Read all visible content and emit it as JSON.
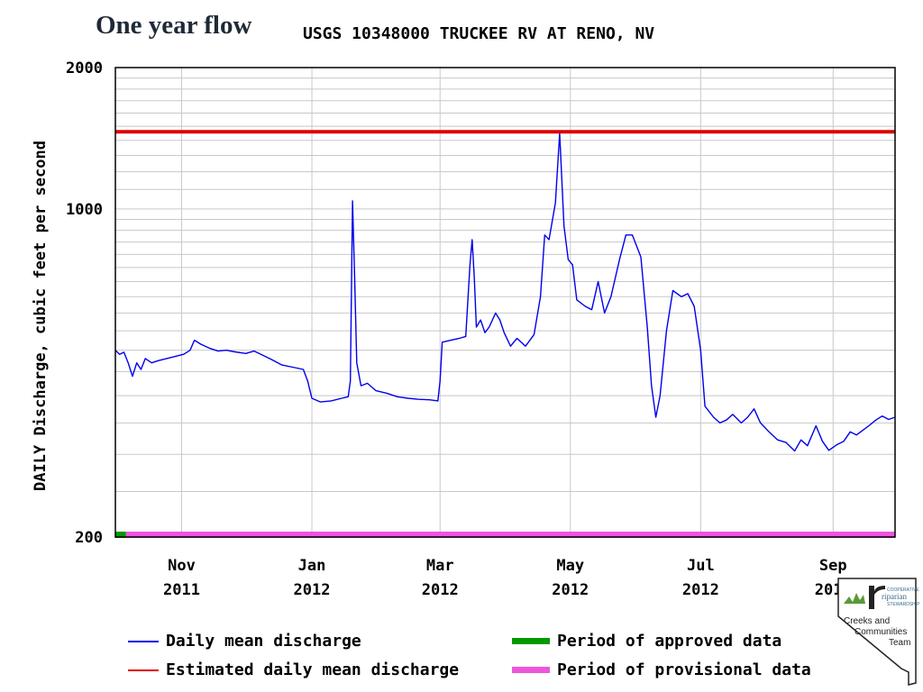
{
  "slide_title": "One year flow",
  "chart_title": "USGS 10348000 TRUCKEE RV AT RENO, NV",
  "colors": {
    "daily": "#0000ee",
    "estimated": "#dd0000",
    "approved": "#009900",
    "provisional": "#ee55dd",
    "grid": "#c8c8c8"
  },
  "legend": {
    "daily": "Daily mean discharge",
    "estimated": "Estimated daily mean discharge",
    "approved": "Period of approved data",
    "provisional": "Period of provisional data"
  },
  "logo": {
    "brand_small": "COOPERATIVE",
    "brand_main": "riparian",
    "brand_sub": "STEWARDSHIP",
    "team_line1": "Creeks and",
    "team_line2": "Communities",
    "team_line3": "Team",
    "icon": "nevada-state-outline-icon"
  },
  "chart_data": {
    "type": "line",
    "title": "USGS 10348000 TRUCKEE RV AT RENO, NV",
    "ylabel": "DAILY Discharge, cubic feet per second",
    "xlabel": "",
    "yscale": "log",
    "ylim": [
      200,
      2000
    ],
    "ytick_labels": [
      "2000",
      "1000",
      "200"
    ],
    "yticks": [
      2000,
      1000,
      200
    ],
    "xlim": [
      "2011-10-01",
      "2012-09-30"
    ],
    "xticks": [
      {
        "date": "2011-11-01",
        "label1": "Nov",
        "label2": "2011"
      },
      {
        "date": "2012-01-01",
        "label1": "Jan",
        "label2": "2012"
      },
      {
        "date": "2012-03-01",
        "label1": "Mar",
        "label2": "2012"
      },
      {
        "date": "2012-05-01",
        "label1": "May",
        "label2": "2012"
      },
      {
        "date": "2012-07-01",
        "label1": "Jul",
        "label2": "2012"
      },
      {
        "date": "2012-09-01",
        "label1": "Sep",
        "label2": "2012"
      }
    ],
    "grid": true,
    "series": [
      {
        "name": "Daily mean discharge",
        "color": "#0000ee",
        "points": [
          [
            "2011-10-01",
            500
          ],
          [
            "2011-10-03",
            490
          ],
          [
            "2011-10-05",
            495
          ],
          [
            "2011-10-07",
            470
          ],
          [
            "2011-10-09",
            440
          ],
          [
            "2011-10-11",
            470
          ],
          [
            "2011-10-13",
            455
          ],
          [
            "2011-10-15",
            480
          ],
          [
            "2011-10-18",
            470
          ],
          [
            "2011-10-21",
            475
          ],
          [
            "2011-10-25",
            480
          ],
          [
            "2011-10-29",
            485
          ],
          [
            "2011-11-02",
            490
          ],
          [
            "2011-11-05",
            500
          ],
          [
            "2011-11-07",
            525
          ],
          [
            "2011-11-10",
            515
          ],
          [
            "2011-11-14",
            505
          ],
          [
            "2011-11-18",
            498
          ],
          [
            "2011-11-22",
            500
          ],
          [
            "2011-11-26",
            496
          ],
          [
            "2011-12-01",
            492
          ],
          [
            "2011-12-05",
            498
          ],
          [
            "2011-12-09",
            488
          ],
          [
            "2011-12-13",
            478
          ],
          [
            "2011-12-18",
            465
          ],
          [
            "2011-12-23",
            460
          ],
          [
            "2011-12-28",
            455
          ],
          [
            "2011-12-30",
            430
          ],
          [
            "2012-01-01",
            395
          ],
          [
            "2012-01-05",
            388
          ],
          [
            "2012-01-10",
            390
          ],
          [
            "2012-01-15",
            395
          ],
          [
            "2012-01-18",
            398
          ],
          [
            "2012-01-19",
            430
          ],
          [
            "2012-01-20",
            1040
          ],
          [
            "2012-01-21",
            720
          ],
          [
            "2012-01-22",
            470
          ],
          [
            "2012-01-24",
            420
          ],
          [
            "2012-01-27",
            425
          ],
          [
            "2012-01-31",
            410
          ],
          [
            "2012-02-05",
            405
          ],
          [
            "2012-02-10",
            398
          ],
          [
            "2012-02-15",
            395
          ],
          [
            "2012-02-20",
            393
          ],
          [
            "2012-02-25",
            392
          ],
          [
            "2012-02-29",
            390
          ],
          [
            "2012-03-01",
            430
          ],
          [
            "2012-03-02",
            520
          ],
          [
            "2012-03-06",
            525
          ],
          [
            "2012-03-10",
            530
          ],
          [
            "2012-03-13",
            535
          ],
          [
            "2012-03-15",
            760
          ],
          [
            "2012-03-16",
            860
          ],
          [
            "2012-03-17",
            720
          ],
          [
            "2012-03-18",
            560
          ],
          [
            "2012-03-20",
            580
          ],
          [
            "2012-03-22",
            545
          ],
          [
            "2012-03-24",
            560
          ],
          [
            "2012-03-27",
            600
          ],
          [
            "2012-03-29",
            580
          ],
          [
            "2012-03-31",
            545
          ],
          [
            "2012-04-03",
            510
          ],
          [
            "2012-04-06",
            530
          ],
          [
            "2012-04-10",
            510
          ],
          [
            "2012-04-14",
            540
          ],
          [
            "2012-04-17",
            650
          ],
          [
            "2012-04-19",
            880
          ],
          [
            "2012-04-21",
            860
          ],
          [
            "2012-04-24",
            1030
          ],
          [
            "2012-04-26",
            1450
          ],
          [
            "2012-04-28",
            920
          ],
          [
            "2012-04-30",
            780
          ],
          [
            "2012-05-02",
            760
          ],
          [
            "2012-05-04",
            640
          ],
          [
            "2012-05-08",
            620
          ],
          [
            "2012-05-11",
            610
          ],
          [
            "2012-05-14",
            700
          ],
          [
            "2012-05-17",
            600
          ],
          [
            "2012-05-20",
            650
          ],
          [
            "2012-05-24",
            780
          ],
          [
            "2012-05-27",
            880
          ],
          [
            "2012-05-30",
            880
          ],
          [
            "2012-06-03",
            790
          ],
          [
            "2012-06-06",
            560
          ],
          [
            "2012-06-08",
            420
          ],
          [
            "2012-06-10",
            360
          ],
          [
            "2012-06-12",
            400
          ],
          [
            "2012-06-15",
            550
          ],
          [
            "2012-06-18",
            670
          ],
          [
            "2012-06-22",
            650
          ],
          [
            "2012-06-25",
            660
          ],
          [
            "2012-06-28",
            620
          ],
          [
            "2012-07-01",
            500
          ],
          [
            "2012-07-03",
            380
          ],
          [
            "2012-07-07",
            360
          ],
          [
            "2012-07-10",
            350
          ],
          [
            "2012-07-13",
            355
          ],
          [
            "2012-07-16",
            365
          ],
          [
            "2012-07-20",
            350
          ],
          [
            "2012-07-23",
            360
          ],
          [
            "2012-07-26",
            375
          ],
          [
            "2012-07-29",
            350
          ],
          [
            "2012-08-02",
            335
          ],
          [
            "2012-08-06",
            322
          ],
          [
            "2012-08-10",
            318
          ],
          [
            "2012-08-14",
            305
          ],
          [
            "2012-08-17",
            322
          ],
          [
            "2012-08-20",
            313
          ],
          [
            "2012-08-24",
            345
          ],
          [
            "2012-08-27",
            320
          ],
          [
            "2012-08-30",
            306
          ],
          [
            "2012-09-03",
            315
          ],
          [
            "2012-09-06",
            320
          ],
          [
            "2012-09-09",
            335
          ],
          [
            "2012-09-12",
            330
          ],
          [
            "2012-09-15",
            338
          ],
          [
            "2012-09-18",
            346
          ],
          [
            "2012-09-21",
            355
          ],
          [
            "2012-09-24",
            362
          ],
          [
            "2012-09-27",
            356
          ],
          [
            "2012-09-30",
            360
          ]
        ]
      },
      {
        "name": "Estimated daily mean discharge",
        "color": "#dd0000",
        "points": [
          [
            "2011-10-01",
            1460
          ],
          [
            "2012-09-30",
            1460
          ]
        ]
      }
    ],
    "period_bars": [
      {
        "name": "Period of approved data",
        "color": "#009900",
        "start": "2011-10-01",
        "end": "2011-10-06"
      },
      {
        "name": "Period of provisional data",
        "color": "#ee55dd",
        "start": "2011-10-06",
        "end": "2012-09-30"
      }
    ]
  }
}
